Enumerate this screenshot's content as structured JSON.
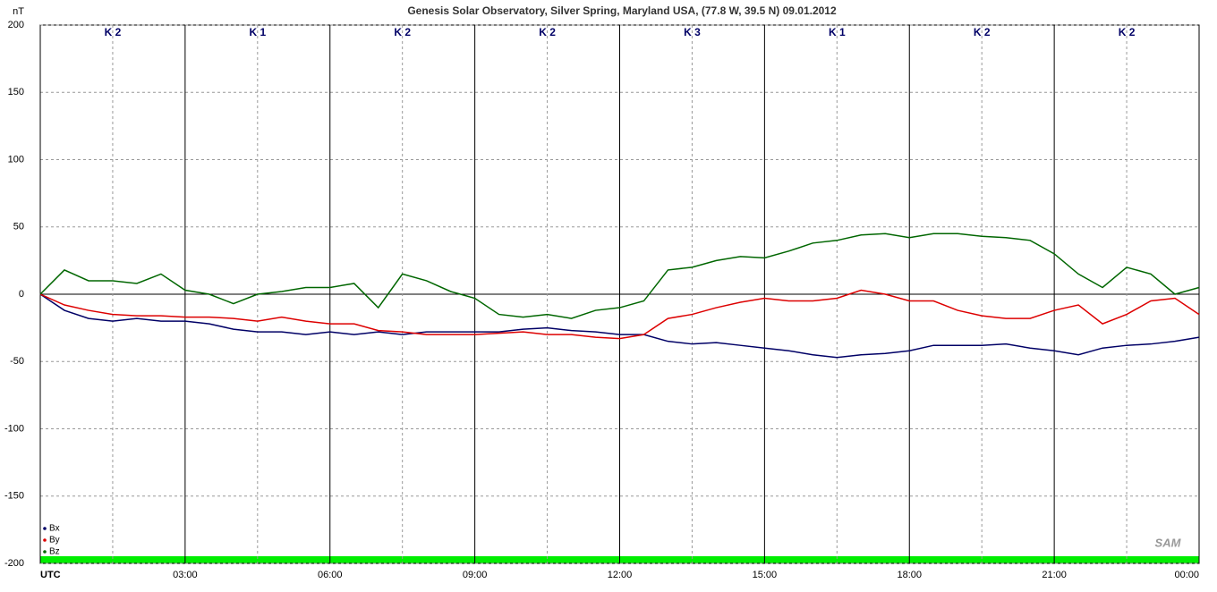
{
  "chart_data": {
    "type": "line",
    "title": "Genesis Solar Observatory, Silver Spring, Maryland USA, (77.8 W, 39.5 N)  09.01.2012",
    "y_label": "nT",
    "logo": "SAM",
    "k_index": [
      "K 2",
      "K 1",
      "K 2",
      "K 2",
      "K 3",
      "K 1",
      "K 2",
      "K 2"
    ],
    "x": [
      0,
      0.5,
      1,
      1.5,
      2,
      2.5,
      3,
      3.5,
      4,
      4.5,
      5,
      5.5,
      6,
      6.5,
      7,
      7.5,
      8,
      8.5,
      9,
      9.5,
      10,
      10.5,
      11,
      11.5,
      12,
      12.5,
      13,
      13.5,
      14,
      14.5,
      15,
      15.5,
      16,
      16.5,
      17,
      17.5,
      18,
      18.5,
      19,
      19.5,
      20,
      20.5,
      21,
      21.5,
      22,
      22.5,
      23,
      23.5,
      24
    ],
    "xlim": [
      0,
      24
    ],
    "xticks": [
      {
        "value": 0,
        "label": "UTC"
      },
      {
        "value": 3,
        "label": "03:00"
      },
      {
        "value": 6,
        "label": "06:00"
      },
      {
        "value": 9,
        "label": "09:00"
      },
      {
        "value": 12,
        "label": "12:00"
      },
      {
        "value": 15,
        "label": "15:00"
      },
      {
        "value": 18,
        "label": "18:00"
      },
      {
        "value": 21,
        "label": "21:00"
      },
      {
        "value": 24,
        "label": "00:00"
      }
    ],
    "ylim": [
      -200,
      200
    ],
    "yticks": [
      -200,
      -150,
      -100,
      -50,
      0,
      50,
      100,
      150,
      200
    ],
    "grid": true,
    "legend": "lower left",
    "series": [
      {
        "name": "Bx",
        "color": "#000066",
        "values": [
          0,
          -12,
          -18,
          -20,
          -18,
          -20,
          -20,
          -22,
          -26,
          -28,
          -28,
          -30,
          -28,
          -30,
          -28,
          -30,
          -28,
          -28,
          -28,
          -28,
          -26,
          -25,
          -27,
          -28,
          -30,
          -30,
          -35,
          -37,
          -36,
          -38,
          -40,
          -42,
          -45,
          -47,
          -45,
          -44,
          -42,
          -38,
          -38,
          -38,
          -37,
          -40,
          -42,
          -45,
          -40,
          -38,
          -37,
          -35,
          -32
        ]
      },
      {
        "name": "By",
        "color": "#dd0000",
        "values": [
          0,
          -8,
          -12,
          -15,
          -16,
          -16,
          -17,
          -17,
          -18,
          -20,
          -17,
          -20,
          -22,
          -22,
          -27,
          -28,
          -30,
          -30,
          -30,
          -29,
          -28,
          -30,
          -30,
          -32,
          -33,
          -30,
          -18,
          -15,
          -10,
          -6,
          -3,
          -5,
          -5,
          -3,
          3,
          0,
          -5,
          -5,
          -12,
          -16,
          -18,
          -18,
          -12,
          -8,
          -22,
          -15,
          -5,
          -3,
          -15
        ]
      },
      {
        "name": "Bz",
        "color": "#006600",
        "values": [
          0,
          18,
          10,
          10,
          8,
          15,
          3,
          0,
          -7,
          0,
          2,
          5,
          5,
          8,
          -10,
          15,
          10,
          2,
          -3,
          -15,
          -17,
          -15,
          -18,
          -12,
          -10,
          -5,
          18,
          20,
          25,
          28,
          27,
          32,
          38,
          40,
          44,
          45,
          42,
          45,
          45,
          43,
          42,
          40,
          30,
          15,
          5,
          20,
          15,
          0,
          5
        ]
      }
    ]
  }
}
